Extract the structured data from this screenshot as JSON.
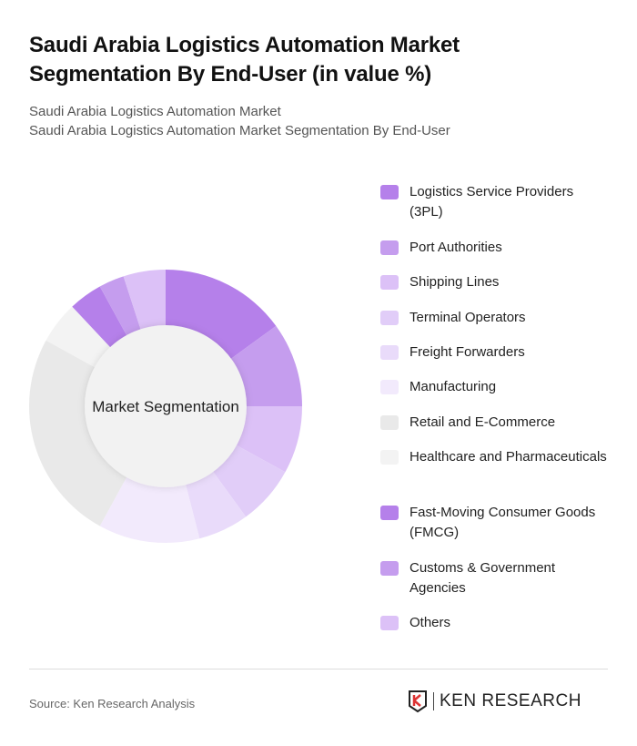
{
  "title": "Saudi Arabia Logistics Automation Market Segmentation By End-User (in value %)",
  "subtitle_1": "Saudi Arabia Logistics Automation Market",
  "subtitle_2": "Saudi Arabia Logistics Automation Market Segmentation By End-User",
  "source": "Source: Ken Research Analysis",
  "logo_text": "KEN RESEARCH",
  "chart_data": {
    "type": "pie",
    "variant": "donut",
    "center_label": "Market Segmentation",
    "unit": "%",
    "legend_position": "right",
    "categories": [
      "Logistics Service Providers (3PL)",
      "Port Authorities",
      "Shipping Lines",
      "Terminal Operators",
      "Freight Forwarders",
      "Manufacturing",
      "Retail and E-Commerce",
      "Healthcare and Pharmaceuticals",
      "Fast-Moving Consumer Goods (FMCG)",
      "Customs & Government Agencies",
      "Others"
    ],
    "values": [
      15,
      10,
      8,
      7,
      6,
      12,
      25,
      5,
      4,
      3,
      5
    ],
    "colors": [
      "#b580ea",
      "#c59dee",
      "#dcc1f7",
      "#e1cdf8",
      "#e9dbfa",
      "#f2eafc",
      "#e9e9e9",
      "#f3f3f3",
      "#b580ea",
      "#c59dee",
      "#dcc1f7"
    ]
  }
}
